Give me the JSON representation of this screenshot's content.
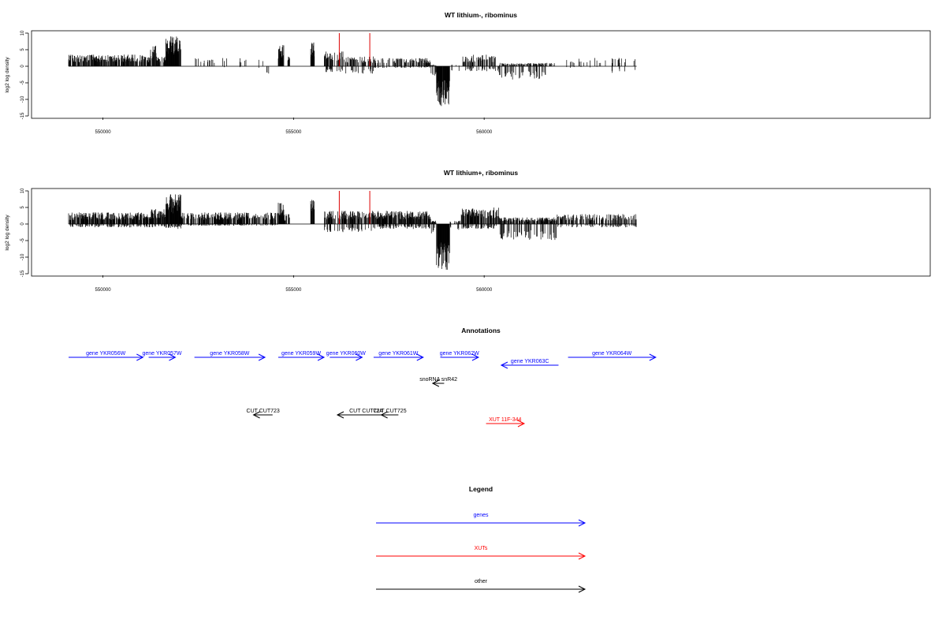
{
  "chart_data": [
    {
      "type": "bar",
      "title": "WT lithium-, ribominus",
      "ylabel": "log2 log density",
      "xlim": [
        548500,
        571700
      ],
      "ylim": [
        -15,
        10
      ],
      "xticks": [
        550000,
        555000,
        560000
      ],
      "yticks": [
        -15,
        -10,
        -5,
        0,
        5,
        10
      ],
      "marker_lines": [
        {
          "x": 556200,
          "color": "#dd0000"
        },
        {
          "x": 557000,
          "color": "#dd0000"
        }
      ],
      "profile": [
        {
          "from": 549100,
          "to": 551250,
          "plus": 3.5,
          "minus": 0,
          "fill": 0.6
        },
        {
          "from": 551250,
          "to": 551400,
          "plus": 6.5,
          "minus": 0,
          "fill": 0.8
        },
        {
          "from": 551400,
          "to": 551650,
          "plus": 3,
          "minus": 0,
          "fill": 0.5
        },
        {
          "from": 551650,
          "to": 552050,
          "plus": 9,
          "minus": 0,
          "fill": 0.95
        },
        {
          "from": 552050,
          "to": 553000,
          "plus": 2.5,
          "minus": 0,
          "fill": 0.12
        },
        {
          "from": 553000,
          "to": 554300,
          "plus": 2.5,
          "minus": 0.5,
          "fill": 0.07
        },
        {
          "from": 554300,
          "to": 554400,
          "plus": 0,
          "minus": 3,
          "fill": 0.5
        },
        {
          "from": 554600,
          "to": 554750,
          "plus": 6.5,
          "minus": 0,
          "fill": 0.9
        },
        {
          "from": 554850,
          "to": 554900,
          "plus": 3,
          "minus": 0,
          "fill": 0.8
        },
        {
          "from": 555450,
          "to": 555550,
          "plus": 7.5,
          "minus": 0,
          "fill": 0.95
        },
        {
          "from": 555800,
          "to": 556300,
          "plus": 4.5,
          "minus": 2,
          "fill": 0.45
        },
        {
          "from": 556300,
          "to": 557100,
          "plus": 3,
          "minus": 2.5,
          "fill": 0.4
        },
        {
          "from": 557100,
          "to": 558600,
          "plus": 2.5,
          "minus": 0.5,
          "fill": 0.45
        },
        {
          "from": 558600,
          "to": 558750,
          "plus": 0.5,
          "minus": 3,
          "fill": 0.6
        },
        {
          "from": 558750,
          "to": 559100,
          "plus": 0,
          "minus": 12,
          "fill": 0.98
        },
        {
          "from": 559100,
          "to": 559400,
          "plus": 0.5,
          "minus": 1.5,
          "fill": 0.15
        },
        {
          "from": 559400,
          "to": 560300,
          "plus": 3.5,
          "minus": 1.5,
          "fill": 0.5
        },
        {
          "from": 560300,
          "to": 560400,
          "plus": 0,
          "minus": 2,
          "fill": 0.3
        },
        {
          "from": 560400,
          "to": 561900,
          "plus": 1,
          "minus": 4,
          "fill": 0.5
        },
        {
          "from": 561900,
          "to": 563200,
          "plus": 2.5,
          "minus": 0.5,
          "fill": 0.12
        },
        {
          "from": 563200,
          "to": 564000,
          "plus": 2.5,
          "minus": 2,
          "fill": 0.18
        }
      ]
    },
    {
      "type": "bar",
      "title": "WT lithium+, ribominus",
      "ylabel": "log2 log density",
      "xlim": [
        548500,
        571700
      ],
      "ylim": [
        -15,
        10
      ],
      "xticks": [
        550000,
        555000,
        560000
      ],
      "yticks": [
        -15,
        -10,
        -5,
        0,
        5,
        10
      ],
      "marker_lines": [
        {
          "x": 556200,
          "color": "#dd0000"
        },
        {
          "x": 557000,
          "color": "#dd0000"
        }
      ],
      "profile": [
        {
          "from": 549100,
          "to": 551250,
          "plus": 3.5,
          "minus": 1,
          "fill": 0.75
        },
        {
          "from": 551250,
          "to": 551650,
          "plus": 4.5,
          "minus": 1,
          "fill": 0.8
        },
        {
          "from": 551650,
          "to": 552050,
          "plus": 9,
          "minus": 1.5,
          "fill": 0.95
        },
        {
          "from": 552050,
          "to": 554600,
          "plus": 3.5,
          "minus": 0.5,
          "fill": 0.6
        },
        {
          "from": 554600,
          "to": 554750,
          "plus": 6.5,
          "minus": 0,
          "fill": 0.9
        },
        {
          "from": 554750,
          "to": 554900,
          "plus": 3,
          "minus": 0,
          "fill": 0.6
        },
        {
          "from": 555450,
          "to": 555550,
          "plus": 8,
          "minus": 0,
          "fill": 0.95
        },
        {
          "from": 555800,
          "to": 557100,
          "plus": 4,
          "minus": 2.5,
          "fill": 0.6
        },
        {
          "from": 557100,
          "to": 558600,
          "plus": 4,
          "minus": 1.5,
          "fill": 0.7
        },
        {
          "from": 558600,
          "to": 558750,
          "plus": 1,
          "minus": 3,
          "fill": 0.6
        },
        {
          "from": 558750,
          "to": 559100,
          "plus": 0,
          "minus": 14,
          "fill": 0.98
        },
        {
          "from": 559100,
          "to": 559400,
          "plus": 1,
          "minus": 2,
          "fill": 0.3
        },
        {
          "from": 559400,
          "to": 560400,
          "plus": 5,
          "minus": 1.5,
          "fill": 0.7
        },
        {
          "from": 560400,
          "to": 561900,
          "plus": 2,
          "minus": 5,
          "fill": 0.7
        },
        {
          "from": 561900,
          "to": 564000,
          "plus": 3,
          "minus": 1,
          "fill": 0.45
        }
      ]
    }
  ],
  "annotations": {
    "title": "Annotations",
    "xlim": [
      548500,
      571700
    ],
    "features": [
      {
        "label": "gene YKR056W",
        "type": "gene",
        "strand": "+",
        "start": 549100,
        "end": 551050,
        "row": 1
      },
      {
        "label": "gene YKR057W",
        "type": "gene",
        "strand": "+",
        "start": 551200,
        "end": 551900,
        "row": 1
      },
      {
        "label": "gene YKR058W",
        "type": "gene",
        "strand": "+",
        "start": 552400,
        "end": 554250,
        "row": 1
      },
      {
        "label": "gene YKR059W",
        "type": "gene",
        "strand": "+",
        "start": 554600,
        "end": 555800,
        "row": 1
      },
      {
        "label": "gene YKR060W",
        "type": "gene",
        "strand": "+",
        "start": 555950,
        "end": 556800,
        "row": 1
      },
      {
        "label": "gene YKR061W",
        "type": "gene",
        "strand": "+",
        "start": 557100,
        "end": 558400,
        "row": 1
      },
      {
        "label": "gene YKR062W",
        "type": "gene",
        "strand": "+",
        "start": 558850,
        "end": 559850,
        "row": 1
      },
      {
        "label": "gene YKR063C",
        "type": "gene",
        "strand": "-",
        "start": 560450,
        "end": 561950,
        "row": 2
      },
      {
        "label": "gene YKR064W",
        "type": "gene",
        "strand": "+",
        "start": 562200,
        "end": 564500,
        "row": 1
      },
      {
        "label": "snoRNA snR42",
        "type": "other",
        "strand": "-",
        "start": 558650,
        "end": 558950,
        "row": 3
      },
      {
        "label": "CUT CUT723",
        "type": "other",
        "strand": "-",
        "start": 553950,
        "end": 554450,
        "row": 4
      },
      {
        "label": "CUT CUT724",
        "type": "other",
        "strand": "-",
        "start": 556150,
        "end": 557650,
        "row": 4
      },
      {
        "label": "CUT CUT725",
        "type": "other",
        "strand": "-",
        "start": 557300,
        "end": 557750,
        "row": 4
      },
      {
        "label": "XUT 11F-344",
        "type": "xut",
        "strand": "+",
        "start": 560050,
        "end": 561050,
        "row": 5
      }
    ]
  },
  "legend": {
    "title": "Legend",
    "items": [
      {
        "label": "genes",
        "color": "#0000ff"
      },
      {
        "label": "XUTs",
        "color": "#ff0000"
      },
      {
        "label": "other",
        "color": "#000000"
      }
    ]
  },
  "colors": {
    "gene": "#0000ff",
    "xut": "#ff0000",
    "other": "#000000",
    "marker": "#dd0000"
  }
}
